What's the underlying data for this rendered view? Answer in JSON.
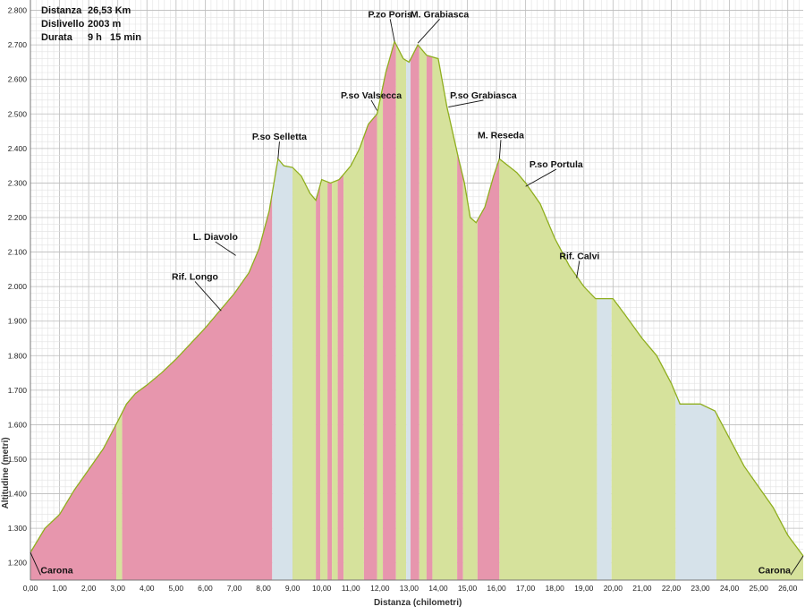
{
  "info": {
    "distance_label": "Distanza",
    "distance_value": "26,53 Km",
    "elevation_label": "Dislivello",
    "elevation_value": "2003 m",
    "duration_label": "Durata",
    "duration_value": "9 h   15 min"
  },
  "colors": {
    "pink": "#e796ad",
    "green": "#d6e29c",
    "bluegray": "#d6e2ea",
    "outline": "#8fae1e",
    "grid": "#c9c9c9"
  },
  "chart_data": {
    "type": "area",
    "xlabel": "Distanza (chilometri)",
    "ylabel": "Altitudine (metri)",
    "xlim": [
      0,
      26.53
    ],
    "ylim": [
      1150,
      2830
    ],
    "x_ticks": [
      "0,00",
      "1,00",
      "2,00",
      "3,00",
      "4,00",
      "5,00",
      "6,00",
      "7,00",
      "8,00",
      "9,00",
      "10,00",
      "11,00",
      "12,00",
      "13,00",
      "14,00",
      "15,00",
      "16,00",
      "17,00",
      "18,00",
      "19,00",
      "20,00",
      "21,00",
      "22,00",
      "23,00",
      "24,00",
      "25,00",
      "26,00"
    ],
    "y_ticks": [
      "1.200",
      "1.300",
      "1.400",
      "1.500",
      "1.600",
      "1.700",
      "1.800",
      "1.900",
      "2.000",
      "2.100",
      "2.200",
      "2.300",
      "2.400",
      "2.500",
      "2.600",
      "2.700",
      "2.800"
    ],
    "profile": [
      [
        0.0,
        1230
      ],
      [
        0.5,
        1300
      ],
      [
        1.0,
        1340
      ],
      [
        1.5,
        1410
      ],
      [
        2.0,
        1470
      ],
      [
        2.5,
        1530
      ],
      [
        3.0,
        1610
      ],
      [
        3.3,
        1660
      ],
      [
        3.6,
        1690
      ],
      [
        4.0,
        1715
      ],
      [
        4.5,
        1750
      ],
      [
        5.0,
        1790
      ],
      [
        5.5,
        1835
      ],
      [
        6.0,
        1880
      ],
      [
        6.5,
        1930
      ],
      [
        7.0,
        1980
      ],
      [
        7.5,
        2040
      ],
      [
        7.85,
        2110
      ],
      [
        8.2,
        2220
      ],
      [
        8.5,
        2370
      ],
      [
        8.7,
        2350
      ],
      [
        9.0,
        2345
      ],
      [
        9.3,
        2320
      ],
      [
        9.6,
        2270
      ],
      [
        9.8,
        2250
      ],
      [
        10.0,
        2310
      ],
      [
        10.3,
        2300
      ],
      [
        10.6,
        2310
      ],
      [
        11.0,
        2350
      ],
      [
        11.3,
        2400
      ],
      [
        11.6,
        2470
      ],
      [
        11.9,
        2500
      ],
      [
        12.2,
        2620
      ],
      [
        12.5,
        2710
      ],
      [
        12.8,
        2660
      ],
      [
        13.0,
        2650
      ],
      [
        13.3,
        2700
      ],
      [
        13.6,
        2670
      ],
      [
        14.0,
        2660
      ],
      [
        14.3,
        2520
      ],
      [
        14.7,
        2370
      ],
      [
        14.9,
        2300
      ],
      [
        15.1,
        2200
      ],
      [
        15.3,
        2185
      ],
      [
        15.6,
        2230
      ],
      [
        15.9,
        2320
      ],
      [
        16.1,
        2370
      ],
      [
        16.4,
        2350
      ],
      [
        16.7,
        2330
      ],
      [
        17.0,
        2300
      ],
      [
        17.5,
        2240
      ],
      [
        18.0,
        2140
      ],
      [
        18.5,
        2060
      ],
      [
        19.0,
        2000
      ],
      [
        19.4,
        1965
      ],
      [
        20.0,
        1965
      ],
      [
        20.4,
        1920
      ],
      [
        21.0,
        1850
      ],
      [
        21.5,
        1800
      ],
      [
        22.0,
        1720
      ],
      [
        22.3,
        1660
      ],
      [
        23.0,
        1660
      ],
      [
        23.5,
        1640
      ],
      [
        24.0,
        1560
      ],
      [
        24.5,
        1480
      ],
      [
        25.0,
        1420
      ],
      [
        25.5,
        1360
      ],
      [
        26.0,
        1280
      ],
      [
        26.53,
        1220
      ]
    ],
    "bands": [
      {
        "from": 0.0,
        "to": 2.95,
        "c": "pink"
      },
      {
        "from": 2.95,
        "to": 3.15,
        "c": "green"
      },
      {
        "from": 3.15,
        "to": 8.3,
        "c": "pink"
      },
      {
        "from": 8.3,
        "to": 9.0,
        "c": "bluegray"
      },
      {
        "from": 9.0,
        "to": 9.8,
        "c": "green"
      },
      {
        "from": 9.8,
        "to": 9.95,
        "c": "pink"
      },
      {
        "from": 9.95,
        "to": 10.2,
        "c": "green"
      },
      {
        "from": 10.2,
        "to": 10.35,
        "c": "pink"
      },
      {
        "from": 10.35,
        "to": 10.55,
        "c": "green"
      },
      {
        "from": 10.55,
        "to": 10.75,
        "c": "pink"
      },
      {
        "from": 10.75,
        "to": 11.45,
        "c": "green"
      },
      {
        "from": 11.45,
        "to": 11.9,
        "c": "pink"
      },
      {
        "from": 11.9,
        "to": 12.1,
        "c": "green"
      },
      {
        "from": 12.1,
        "to": 12.55,
        "c": "pink"
      },
      {
        "from": 12.55,
        "to": 12.9,
        "c": "green"
      },
      {
        "from": 12.9,
        "to": 13.05,
        "c": "bluegray"
      },
      {
        "from": 13.05,
        "to": 13.35,
        "c": "pink"
      },
      {
        "from": 13.35,
        "to": 13.6,
        "c": "green"
      },
      {
        "from": 13.6,
        "to": 13.8,
        "c": "pink"
      },
      {
        "from": 13.8,
        "to": 14.65,
        "c": "green"
      },
      {
        "from": 14.65,
        "to": 14.85,
        "c": "pink"
      },
      {
        "from": 14.85,
        "to": 15.35,
        "c": "green"
      },
      {
        "from": 15.35,
        "to": 16.1,
        "c": "pink"
      },
      {
        "from": 16.1,
        "to": 19.45,
        "c": "green"
      },
      {
        "from": 19.45,
        "to": 19.95,
        "c": "bluegray"
      },
      {
        "from": 19.95,
        "to": 22.15,
        "c": "green"
      },
      {
        "from": 22.15,
        "to": 23.55,
        "c": "bluegray"
      },
      {
        "from": 23.55,
        "to": 26.53,
        "c": "green"
      }
    ],
    "annotations": [
      {
        "text": "Carona",
        "x": 0.0,
        "y": 1230,
        "tx": 0.35,
        "ty": 1170,
        "anchor": "start"
      },
      {
        "text": "Rif. Longo",
        "x": 6.55,
        "y": 1930,
        "tx": 5.65,
        "ty": 2020,
        "anchor": "middle"
      },
      {
        "text": "L. Diavolo",
        "x": 7.05,
        "y": 2090,
        "tx": 6.35,
        "ty": 2135,
        "anchor": "middle"
      },
      {
        "text": "P.so Selletta",
        "x": 8.5,
        "y": 2370,
        "tx": 8.55,
        "ty": 2425,
        "anchor": "middle"
      },
      {
        "text": "P.so Valsecca",
        "x": 11.9,
        "y": 2510,
        "tx": 11.7,
        "ty": 2545,
        "anchor": "middle"
      },
      {
        "text": "P.zo Poris",
        "x": 12.5,
        "y": 2710,
        "tx": 12.35,
        "ty": 2780,
        "anchor": "middle"
      },
      {
        "text": "M. Grabiasca",
        "x": 13.3,
        "y": 2705,
        "tx": 14.05,
        "ty": 2780,
        "anchor": "middle"
      },
      {
        "text": "P.so Grabiasca",
        "x": 14.35,
        "y": 2520,
        "tx": 15.55,
        "ty": 2545,
        "anchor": "middle"
      },
      {
        "text": "M. Reseda",
        "x": 16.1,
        "y": 2370,
        "tx": 16.15,
        "ty": 2430,
        "anchor": "middle"
      },
      {
        "text": "P.so Portula",
        "x": 17.0,
        "y": 2290,
        "tx": 18.05,
        "ty": 2345,
        "anchor": "middle"
      },
      {
        "text": "Rif. Calvi",
        "x": 18.75,
        "y": 2025,
        "tx": 18.85,
        "ty": 2080,
        "anchor": "middle"
      },
      {
        "text": "Carona",
        "x": 26.53,
        "y": 1220,
        "tx": 26.1,
        "ty": 1170,
        "anchor": "end"
      }
    ]
  }
}
